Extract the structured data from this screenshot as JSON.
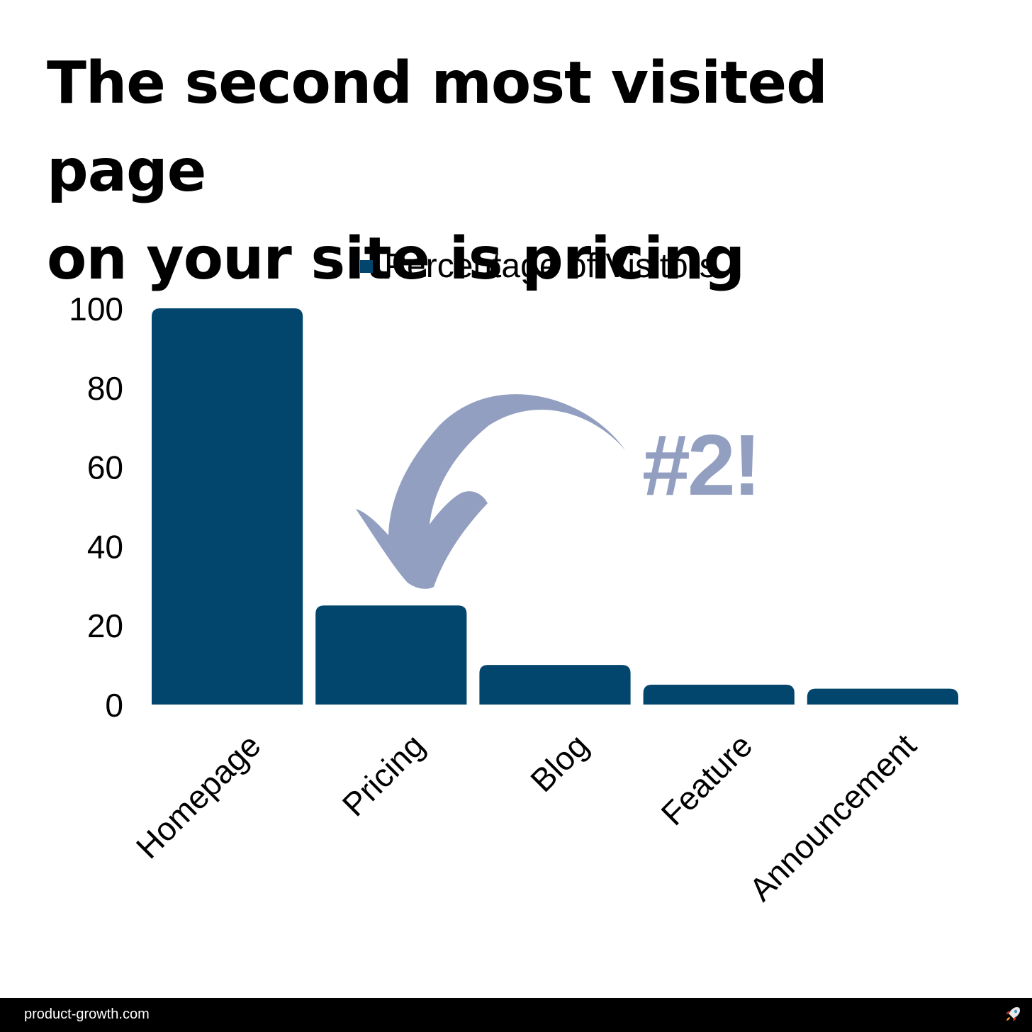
{
  "title_lines": [
    "The second most visited page",
    "on your site is pricing"
  ],
  "chart_data": {
    "type": "bar",
    "categories": [
      "Homepage",
      "Pricing",
      "Blog",
      "Feature",
      "Announcement"
    ],
    "series": [
      {
        "name": "Percentage of Visitors",
        "values": [
          100,
          25,
          10,
          5,
          4
        ]
      }
    ],
    "title": "",
    "xlabel": "",
    "ylabel": "",
    "ylim": [
      0,
      100
    ],
    "yticks": [
      0,
      20,
      40,
      60,
      80,
      100
    ],
    "legend": "top",
    "grid": false,
    "bar_color": "#02466d",
    "annotation": {
      "text": "#2!",
      "target": "Pricing",
      "color": "#939fc1"
    }
  },
  "footer": {
    "site": "product-growth.com",
    "icon": "rocket-icon"
  }
}
